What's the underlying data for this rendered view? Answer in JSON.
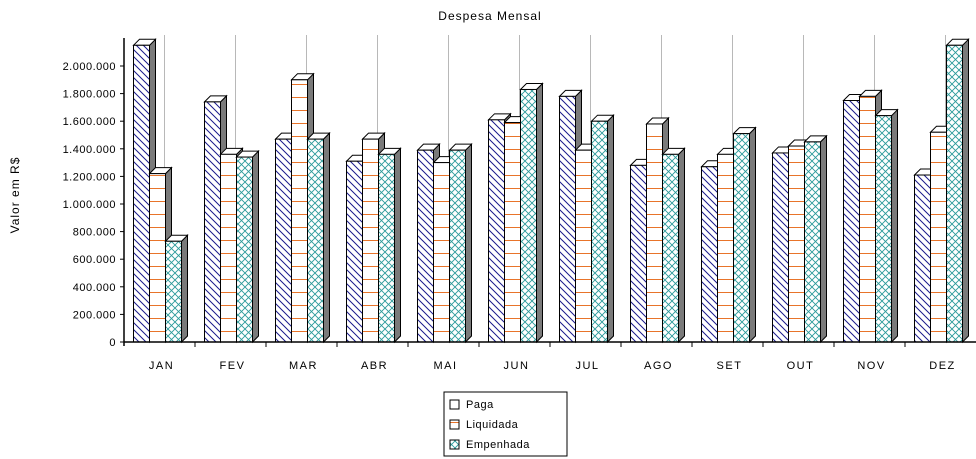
{
  "chart_data": {
    "type": "bar",
    "title": "Despesa Mensal",
    "xlabel": "",
    "ylabel": "Valor em R$",
    "ylim": [
      0,
      2200000
    ],
    "yticks": [
      0,
      200000,
      400000,
      600000,
      800000,
      1000000,
      1200000,
      1400000,
      1600000,
      1800000,
      2000000
    ],
    "ytick_labels": [
      "0",
      "200.000",
      "400.000",
      "600.000",
      "800.000",
      "1.000.000",
      "1.200.000",
      "1.400.000",
      "1.600.000",
      "1.800.000",
      "2.000.000"
    ],
    "categories": [
      "JAN",
      "FEV",
      "MAR",
      "ABR",
      "MAI",
      "JUN",
      "JUL",
      "AGO",
      "SET",
      "OUT",
      "NOV",
      "DEZ"
    ],
    "grid": "vertical",
    "legend_position": "bottom",
    "series": [
      {
        "name": "Paga",
        "color": "#1a1a8c",
        "pattern": "diagonal-lines",
        "values": [
          2150000,
          1740000,
          1470000,
          1310000,
          1390000,
          1610000,
          1780000,
          1280000,
          1270000,
          1370000,
          1750000,
          1210000
        ]
      },
      {
        "name": "Liquidada",
        "color": "#e8742a",
        "pattern": "horizontal-lines",
        "values": [
          1220000,
          1360000,
          1900000,
          1470000,
          1300000,
          1590000,
          1390000,
          1580000,
          1360000,
          1420000,
          1780000,
          1520000
        ]
      },
      {
        "name": "Empenhada",
        "color": "#2a9a9a",
        "pattern": "crosshatch",
        "values": [
          730000,
          1340000,
          1470000,
          1360000,
          1390000,
          1830000,
          1600000,
          1360000,
          1510000,
          1450000,
          1640000,
          2150000
        ]
      }
    ]
  }
}
